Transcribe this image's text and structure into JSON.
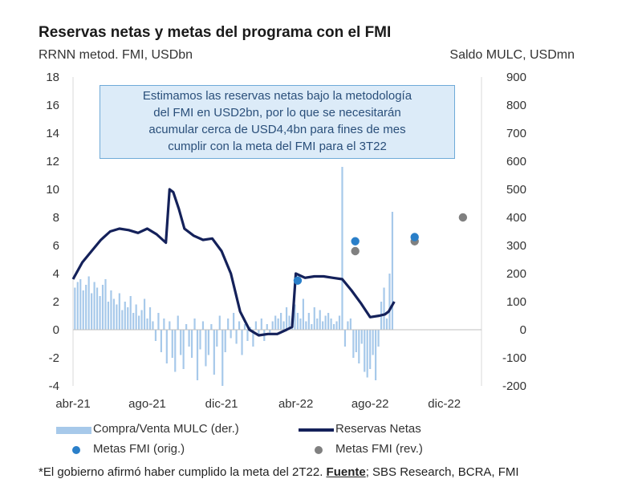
{
  "chart_data": {
    "type": "bar+line",
    "title": "Reservas netas y metas del programa con el FMI",
    "left_axis": {
      "label": "RRNN metod. FMI, USDbn",
      "range": [
        -4,
        18
      ],
      "ticks": [
        "-4",
        "-2",
        "0",
        "2",
        "4",
        "6",
        "8",
        "10",
        "12",
        "14",
        "16",
        "18"
      ]
    },
    "right_axis": {
      "label": "Saldo MULC, USDmn",
      "range": [
        -200,
        900
      ],
      "ticks": [
        "-200",
        "-100",
        "0",
        "100",
        "200",
        "300",
        "400",
        "500",
        "600",
        "700",
        "800",
        "900"
      ]
    },
    "x_axis": {
      "ticks": [
        "abr-21",
        "ago-21",
        "dic-21",
        "abr-22",
        "ago-22",
        "dic-22"
      ],
      "tick_months": [
        0,
        4,
        8,
        12,
        16,
        20
      ],
      "range_months": [
        0,
        22
      ]
    },
    "reservas_netas": {
      "name": "Reservas Netas",
      "x": [
        0,
        0.5,
        1,
        1.5,
        2,
        2.5,
        3,
        3.5,
        4,
        4.5,
        5,
        5.2,
        5.4,
        5.7,
        6,
        6.5,
        7,
        7.5,
        8,
        8.5,
        9,
        9.5,
        10,
        10.5,
        11,
        11.5,
        11.8,
        12,
        12.5,
        13,
        13.5,
        14,
        14.5,
        15,
        15.5,
        16,
        16.5,
        16.8,
        17,
        17.3
      ],
      "y": [
        3.6,
        4.8,
        5.6,
        6.4,
        7.0,
        7.2,
        7.1,
        6.9,
        7.2,
        6.8,
        6.2,
        10.0,
        9.8,
        8.6,
        7.2,
        6.7,
        6.4,
        6.5,
        5.6,
        4.0,
        1.3,
        0.0,
        -0.4,
        -0.3,
        -0.3,
        0.0,
        0.2,
        4.0,
        3.7,
        3.8,
        3.8,
        3.7,
        3.6,
        2.8,
        1.9,
        0.9,
        1.0,
        1.1,
        1.3,
        2.0
      ]
    },
    "mulc": {
      "name": "Compra/Venta MULC (der.)",
      "x": [
        0.1,
        0.25,
        0.4,
        0.55,
        0.7,
        0.85,
        1.0,
        1.15,
        1.3,
        1.45,
        1.6,
        1.75,
        1.9,
        2.05,
        2.2,
        2.35,
        2.5,
        2.65,
        2.8,
        2.95,
        3.1,
        3.25,
        3.4,
        3.55,
        3.7,
        3.85,
        4.0,
        4.15,
        4.3,
        4.45,
        4.6,
        4.75,
        4.9,
        5.05,
        5.2,
        5.35,
        5.5,
        5.65,
        5.8,
        5.95,
        6.1,
        6.25,
        6.4,
        6.55,
        6.7,
        6.85,
        7.0,
        7.15,
        7.3,
        7.45,
        7.6,
        7.75,
        7.9,
        8.05,
        8.2,
        8.35,
        8.5,
        8.65,
        8.8,
        8.95,
        9.1,
        9.25,
        9.4,
        9.55,
        9.7,
        9.85,
        10.0,
        10.15,
        10.3,
        10.45,
        10.6,
        10.75,
        10.9,
        11.05,
        11.2,
        11.35,
        11.5,
        11.65,
        11.8,
        11.95,
        12.1,
        12.25,
        12.4,
        12.55,
        12.7,
        12.85,
        13.0,
        13.15,
        13.3,
        13.45,
        13.6,
        13.75,
        13.9,
        14.05,
        14.2,
        14.35,
        14.5,
        14.65,
        14.8,
        14.95,
        15.1,
        15.25,
        15.4,
        15.55,
        15.7,
        15.85,
        16.0,
        16.15,
        16.3,
        16.45,
        16.6,
        16.75,
        16.9,
        17.05,
        17.2
      ],
      "values": [
        150,
        170,
        180,
        140,
        160,
        190,
        130,
        170,
        150,
        120,
        160,
        180,
        100,
        140,
        110,
        90,
        130,
        70,
        100,
        80,
        120,
        60,
        90,
        50,
        70,
        110,
        40,
        80,
        30,
        -40,
        60,
        -80,
        40,
        -120,
        30,
        -100,
        -150,
        50,
        -90,
        -140,
        20,
        -60,
        -100,
        40,
        -180,
        -70,
        30,
        -130,
        -90,
        20,
        -160,
        -60,
        50,
        -200,
        -80,
        40,
        -30,
        60,
        -50,
        30,
        -90,
        20,
        -40,
        10,
        -60,
        30,
        -20,
        40,
        -40,
        20,
        -10,
        30,
        50,
        40,
        60,
        30,
        80,
        50,
        40,
        90,
        60,
        40,
        110,
        30,
        60,
        20,
        80,
        40,
        70,
        30,
        50,
        60,
        40,
        20,
        30,
        50,
        580,
        -60,
        30,
        40,
        -100,
        -80,
        -120,
        -50,
        -150,
        -170,
        -140,
        -90,
        -180,
        -60,
        100,
        150,
        40,
        200,
        420
      ]
    },
    "metas_orig": {
      "name": "Metas FMI (orig.)",
      "x": [
        12.1,
        15.2,
        18.4
      ],
      "y": [
        3.5,
        6.3,
        6.6
      ],
      "color": "#2a7fc9"
    },
    "metas_rev": {
      "name": "Metas FMI (rev.)",
      "x": [
        15.2,
        18.4,
        21.0
      ],
      "y": [
        5.6,
        6.3,
        8.0
      ],
      "color": "#808080"
    },
    "colors": {
      "line": "#14215a",
      "bars": "#a7c9ea",
      "note_bg": "#dcebf8",
      "note_border": "#6faad8"
    }
  },
  "header": {
    "title": "Reservas netas y metas del programa con el FMI",
    "left_unit": "RRNN metod. FMI, USDbn",
    "right_unit": "Saldo MULC, USDmn"
  },
  "annotation": {
    "lines": [
      "Estimamos las reservas netas bajo la metodología",
      "del FMI  en USD2bn, por lo que se necesitarán",
      "acumular cerca de USD4,4bn para fines de mes",
      "cumplir con la meta del FMI para el 3T22"
    ]
  },
  "legend": {
    "bars": "Compra/Venta MULC (der.)",
    "line": "Reservas Netas",
    "orig": "Metas FMI (orig.)",
    "rev": "Metas FMI (rev.)"
  },
  "footnote": {
    "text": "*El gobierno afirmó haber cumplido la meta del 2T22. ",
    "source_label": "Fuente",
    "source_text": "; SBS Research, BCRA, FMI"
  }
}
